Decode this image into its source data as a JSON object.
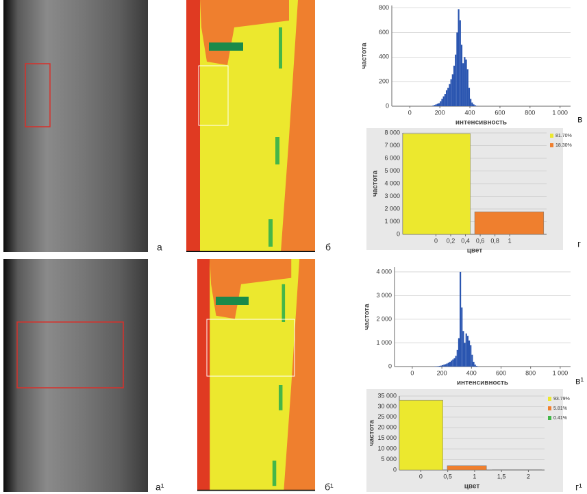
{
  "panel_labels": [
    "а",
    "б",
    "в",
    "г",
    "а¹",
    "б¹",
    "в¹",
    "г¹"
  ],
  "chart_data": [
    {
      "type": "histogram",
      "x_label": "интенсивность",
      "y_label": "частота",
      "color": "#2a55b0",
      "bins": [
        150,
        160,
        170,
        180,
        190,
        200,
        210,
        220,
        230,
        240,
        250,
        260,
        270,
        280,
        290,
        300,
        310,
        320,
        330,
        340,
        350,
        360,
        370,
        380,
        390,
        400,
        410,
        420,
        430,
        440,
        450
      ],
      "values": [
        5,
        10,
        15,
        20,
        25,
        40,
        60,
        80,
        100,
        130,
        150,
        180,
        220,
        260,
        330,
        420,
        600,
        790,
        700,
        500,
        350,
        400,
        380,
        300,
        150,
        60,
        30,
        15,
        8,
        3
      ],
      "xlim": [
        -120,
        1070
      ],
      "xticks": [
        0,
        200,
        400,
        600,
        800,
        {
          "value": 1000,
          "label": "1 000"
        }
      ],
      "ylim": [
        0,
        820
      ],
      "yticks": [
        0,
        200,
        400,
        600,
        800
      ],
      "grid": true
    },
    {
      "type": "bar",
      "y_label": "частота",
      "x_label": "цвет",
      "series": [
        {
          "name": "81.70%",
          "color": "#ece82e",
          "values": [
            7950
          ]
        },
        {
          "name": "18.30%",
          "color": "#ef7f2e",
          "values": [
            1780
          ]
        }
      ],
      "xlim": [
        -0.45,
        1.5
      ],
      "xticks": [
        0,
        {
          "value": 0.2,
          "label": "0,2"
        },
        {
          "value": 0.4,
          "label": "0,4"
        },
        {
          "value": 0.6,
          "label": "0,6"
        },
        {
          "value": 0.8,
          "label": "0,8"
        },
        1
      ],
      "ylim": [
        0,
        8000
      ],
      "yticks": [
        0,
        {
          "value": 1000,
          "label": "1 000"
        },
        {
          "value": 2000,
          "label": "2 000"
        },
        {
          "value": 3000,
          "label": "3 000"
        },
        {
          "value": 4000,
          "label": "4 000"
        },
        {
          "value": 5000,
          "label": "5 000"
        },
        {
          "value": 6000,
          "label": "6 000"
        },
        {
          "value": 7000,
          "label": "7 000"
        },
        {
          "value": 8000,
          "label": "8 000"
        }
      ],
      "grid": true
    },
    {
      "type": "histogram",
      "x_label": "интенсивность",
      "y_label": "частота",
      "color": "#2a55b0",
      "bins": [
        150,
        160,
        170,
        180,
        190,
        200,
        210,
        220,
        230,
        240,
        250,
        260,
        270,
        280,
        290,
        300,
        310,
        320,
        330,
        340,
        350,
        360,
        370,
        380,
        390,
        400,
        410,
        420,
        430,
        440,
        450
      ],
      "values": [
        10,
        15,
        20,
        30,
        40,
        60,
        80,
        100,
        130,
        160,
        200,
        250,
        300,
        350,
        450,
        700,
        1200,
        4000,
        2500,
        1500,
        1000,
        1400,
        1300,
        1100,
        900,
        500,
        200,
        80,
        30,
        10
      ],
      "xlim": [
        -120,
        1070
      ],
      "xticks": [
        0,
        200,
        400,
        600,
        800,
        {
          "value": 1000,
          "label": "1 000"
        }
      ],
      "ylim": [
        0,
        4200
      ],
      "yticks": [
        0,
        {
          "value": 1000,
          "label": "1 000"
        },
        {
          "value": 2000,
          "label": "2 000"
        },
        {
          "value": 3000,
          "label": "3 000"
        },
        {
          "value": 4000,
          "label": "4 000"
        }
      ],
      "grid": true
    },
    {
      "type": "bar",
      "y_label": "частота",
      "x_label": "цвет",
      "series": [
        {
          "name": "93.79%",
          "color": "#ece82e",
          "values": [
            33000
          ]
        },
        {
          "name": "5.81%",
          "color": "#ef7f2e",
          "values": [
            2040
          ]
        },
        {
          "name": "0.41%",
          "color": "#44b649",
          "values": [
            144
          ]
        }
      ],
      "xlim": [
        -0.4,
        2.3
      ],
      "xticks": [
        0,
        {
          "value": 0.5,
          "label": "0,5"
        },
        1,
        {
          "value": 1.5,
          "label": "1,5"
        },
        2
      ],
      "ylim": [
        0,
        35000
      ],
      "yticks": [
        0,
        {
          "value": 5000,
          "label": "5 000"
        },
        {
          "value": 10000,
          "label": "10 000"
        },
        {
          "value": 15000,
          "label": "15 000"
        },
        {
          "value": 20000,
          "label": "20 000"
        },
        {
          "value": 25000,
          "label": "25 000"
        },
        {
          "value": 30000,
          "label": "30 000"
        },
        {
          "value": 35000,
          "label": "35 000"
        }
      ],
      "grid": true
    }
  ]
}
